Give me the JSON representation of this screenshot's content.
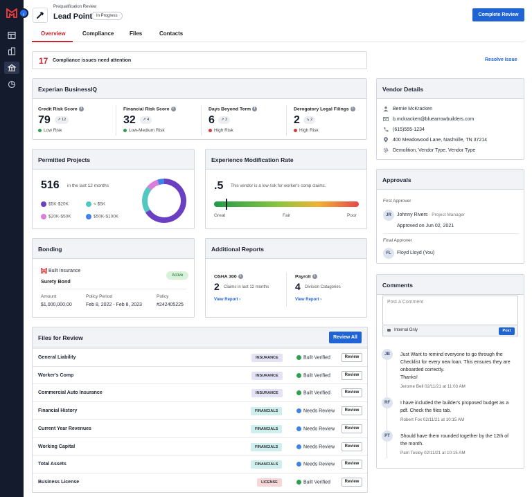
{
  "header": {
    "eyebrow": "Prequalification Review",
    "title": "Lead Point",
    "status": "In Progress",
    "complete_label": "Complete Review"
  },
  "tabs": [
    {
      "label": "Overview",
      "active": true
    },
    {
      "label": "Compliance",
      "active": false
    },
    {
      "label": "Files",
      "active": false
    },
    {
      "label": "Contacts",
      "active": false
    }
  ],
  "alert": {
    "count": "17",
    "message": "Compliance issues need attention",
    "action": "Resolve Issue"
  },
  "experian": {
    "title": "Experian BusinessIQ",
    "metrics": [
      {
        "label": "Credit Risk Score",
        "value": "79",
        "change": "↗ 12",
        "risk": "Low Risk",
        "risk_color": "#2e9e4f"
      },
      {
        "label": "Financial Risk Score",
        "value": "32",
        "change": "↗ 4",
        "risk": "Low-Medium Risk",
        "risk_color": "#2e9e4f"
      },
      {
        "label": "Days Beyond Term",
        "value": "6",
        "change": "↗ 2",
        "risk": "High Risk",
        "risk_color": "#d23b3b"
      },
      {
        "label": "Derogatory Legal Filings",
        "value": "2",
        "change": "↘ 2",
        "risk": "High Risk",
        "risk_color": "#d23b3b"
      }
    ]
  },
  "permitted": {
    "title": "Permitted Projects",
    "total": "516",
    "period": "in the last 12 months",
    "legend": [
      {
        "label": "$5K-$20K",
        "color": "#6b3fc2"
      },
      {
        "label": "< $5K",
        "color": "#53c7c1"
      },
      {
        "label": "$20K-$50K",
        "color": "#d97ed9"
      },
      {
        "label": "$50K-$100K",
        "color": "#3f82ea"
      }
    ],
    "donut": [
      {
        "color": "#6b3fc2",
        "fraction": 0.66
      },
      {
        "color": "#53c7c1",
        "fraction": 0.2
      },
      {
        "color": "#d97ed9",
        "fraction": 0.09
      },
      {
        "color": "#3f82ea",
        "fraction": 0.05
      }
    ]
  },
  "emr": {
    "title": "Experience Modification Rate",
    "value": ".5",
    "note": "This vendor is a low risk for worker's comp claims.",
    "scale": [
      "Great",
      "Fair",
      "Poor"
    ],
    "marker_fraction": 0.08
  },
  "bonding": {
    "title": "Bonding",
    "provider": "Built Insurance",
    "bond_type": "Surety Bond",
    "status": "Active",
    "fields": [
      {
        "label": "Amount",
        "value": "$1,000,000.00"
      },
      {
        "label": "Policy Period",
        "value": "Feb 8, 2022 - Feb 8, 2023"
      },
      {
        "label": "Policy",
        "value": "#242405225"
      }
    ]
  },
  "reports": {
    "title": "Additional Reports",
    "items": [
      {
        "label": "OSHA 300",
        "value": "2",
        "desc": "Claims in last 12 months",
        "link": "View Report"
      },
      {
        "label": "Payroll",
        "value": "4",
        "desc": "Division Catagories",
        "link": "View Report"
      }
    ]
  },
  "files": {
    "title": "Files for Review",
    "review_all": "Review All",
    "review_label": "Review",
    "rows": [
      {
        "name": "General Liability",
        "tag": "INSURANCE",
        "tag_type": "insurance",
        "status": "Built Verified",
        "status_color": "#2e9e4f"
      },
      {
        "name": "Worker's Comp",
        "tag": "INSURANCE",
        "tag_type": "insurance",
        "status": "Built Verified",
        "status_color": "#2e9e4f"
      },
      {
        "name": "Commercial Auto Insurance",
        "tag": "INSURANCE",
        "tag_type": "insurance",
        "status": "Built Verified",
        "status_color": "#2e9e4f"
      },
      {
        "name": "Financial History",
        "tag": "FINANCIALS",
        "tag_type": "financials",
        "status": "Needs Review",
        "status_color": "#3f82ea"
      },
      {
        "name": "Current Year Revenues",
        "tag": "FINANCIALS",
        "tag_type": "financials",
        "status": "Needs Review",
        "status_color": "#3f82ea"
      },
      {
        "name": "Working Capital",
        "tag": "FINANCIALS",
        "tag_type": "financials",
        "status": "Needs Review",
        "status_color": "#3f82ea"
      },
      {
        "name": "Total Assets",
        "tag": "FINANCIALS",
        "tag_type": "financials",
        "status": "Needs Review",
        "status_color": "#3f82ea"
      },
      {
        "name": "Business License",
        "tag": "LICENSE",
        "tag_type": "license",
        "status": "Built Verified",
        "status_color": "#2e9e4f"
      }
    ]
  },
  "vendor": {
    "title": "Vendor Details",
    "name": "Bernie McKracken",
    "email": "b.mckracken@bluearrowbuilders.com",
    "phone": "(615)555-1234",
    "address": "400 Meadowood Lane, Nashville, TN 37214",
    "types": "Demolition, Vendor Type, Vendor Type"
  },
  "approvals": {
    "title": "Approvals",
    "first_label": "First Approver",
    "first_initials": "JR",
    "first_name": "Johnny Rivers",
    "first_role": "· Project Manager",
    "first_date": "Approved on Jun 02, 2021",
    "final_label": "Final Approver",
    "final_initials": "FL",
    "final_name": "Floyd Lloyd (You)"
  },
  "comments": {
    "title": "Comments",
    "placeholder": "Post a Comment",
    "internal": "Internal Only",
    "post": "Post",
    "items": [
      {
        "initials": "JB",
        "lines": [
          "Just Want to remind everyone to go through the",
          "Checklist for every new loan. This ensures they are",
          "onboarded correctly.",
          "Thanks!"
        ],
        "meta": "Jerome Bell 02/11/21 at 11:03 AM"
      },
      {
        "initials": "RF",
        "lines": [
          "I have included the builder's proposed budget as a",
          "pdf. Check the files tab."
        ],
        "meta": "Robert Fox 02/11/21 at 10:15 AM"
      },
      {
        "initials": "PT",
        "lines": [
          "Should have them rounded together by the 12th of",
          "the month."
        ],
        "meta": "Pam Tesley 02/11/21 at 10:15 AM"
      }
    ]
  }
}
